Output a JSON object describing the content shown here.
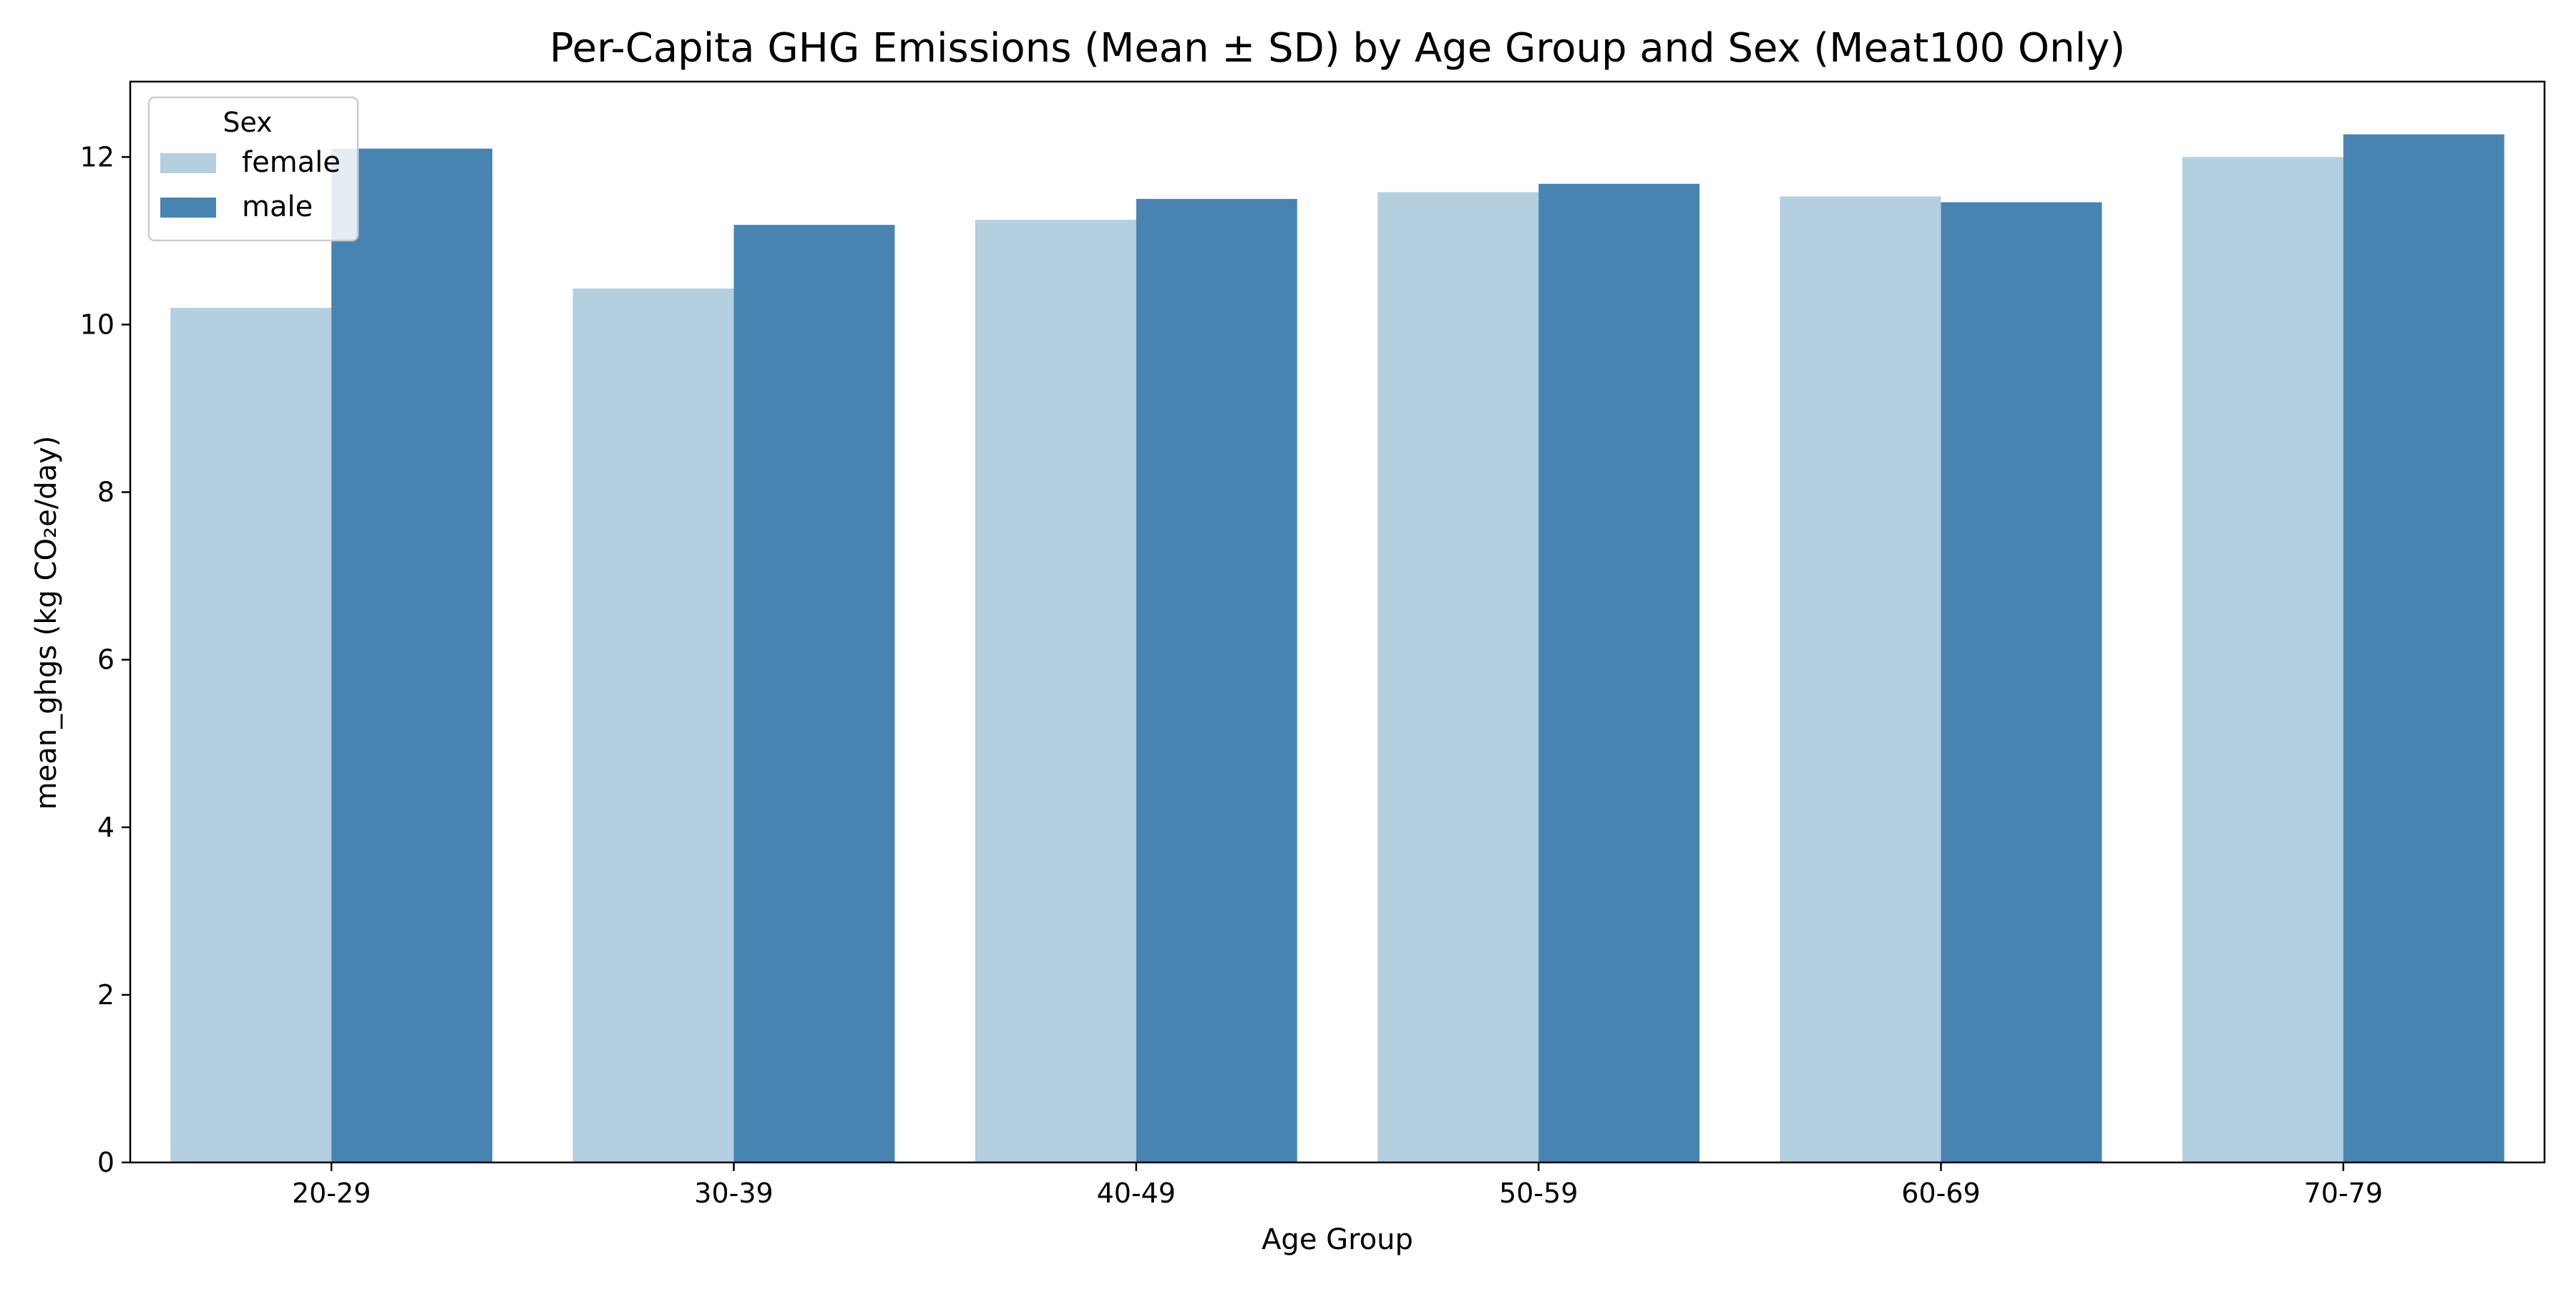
{
  "chart_data": {
    "type": "bar",
    "title": "Per-Capita GHG Emissions (Mean ± SD) by Age Group and Sex (Meat100 Only)",
    "xlabel": "Age Group",
    "ylabel": "mean_ghgs (kg CO₂e/day)",
    "categories": [
      "20-29",
      "30-39",
      "40-49",
      "50-59",
      "60-69",
      "70-79"
    ],
    "series": [
      {
        "name": "female",
        "color": "#b3cfe0",
        "values": [
          10.2,
          10.43,
          11.25,
          11.58,
          11.53,
          12.0
        ]
      },
      {
        "name": "male",
        "color": "#4884b1",
        "values": [
          12.1,
          11.19,
          11.5,
          11.68,
          11.46,
          12.27
        ]
      }
    ],
    "ylim": [
      0,
      12.9
    ],
    "yticks": [
      0,
      2,
      4,
      6,
      8,
      10,
      12
    ],
    "grid": false,
    "legend": {
      "title": "Sex",
      "position": "top-left"
    }
  }
}
